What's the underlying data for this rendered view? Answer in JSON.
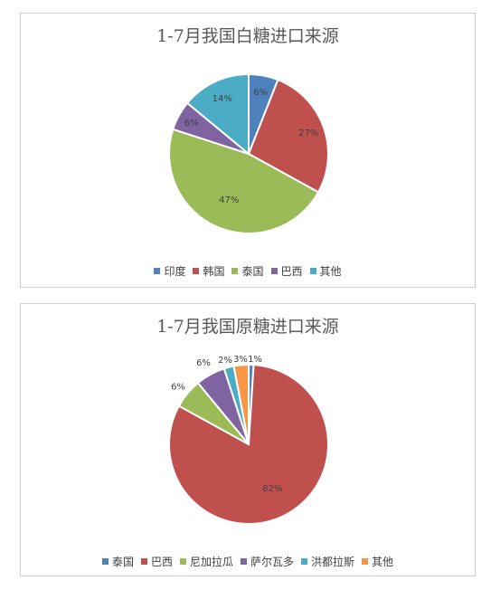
{
  "chart_data": [
    {
      "type": "pie",
      "title": "1-7月我国白糖进口来源",
      "categories": [
        "印度",
        "韩国",
        "泰国",
        "巴西",
        "其他"
      ],
      "values": [
        6,
        27,
        47,
        6,
        14
      ],
      "labels": [
        "6%",
        "27%",
        "47%",
        "6%",
        "14%"
      ],
      "colors": [
        "#4f81bd",
        "#c0504d",
        "#9bbb59",
        "#8064a2",
        "#4bacc6"
      ],
      "legend": "bottom"
    },
    {
      "type": "pie",
      "title": "1-7月我国原糖进口来源",
      "categories": [
        "泰国",
        "巴西",
        "尼加拉瓜",
        "萨尔瓦多",
        "洪都拉斯",
        "其他"
      ],
      "values": [
        1,
        82,
        6,
        6,
        2,
        3
      ],
      "labels": [
        "1%",
        "82%",
        "6%",
        "6%",
        "2%",
        "3%"
      ],
      "colors": [
        "#4f81bd",
        "#c0504d",
        "#9bbb59",
        "#8064a2",
        "#4bacc6",
        "#f79646"
      ],
      "legend": "bottom"
    }
  ]
}
